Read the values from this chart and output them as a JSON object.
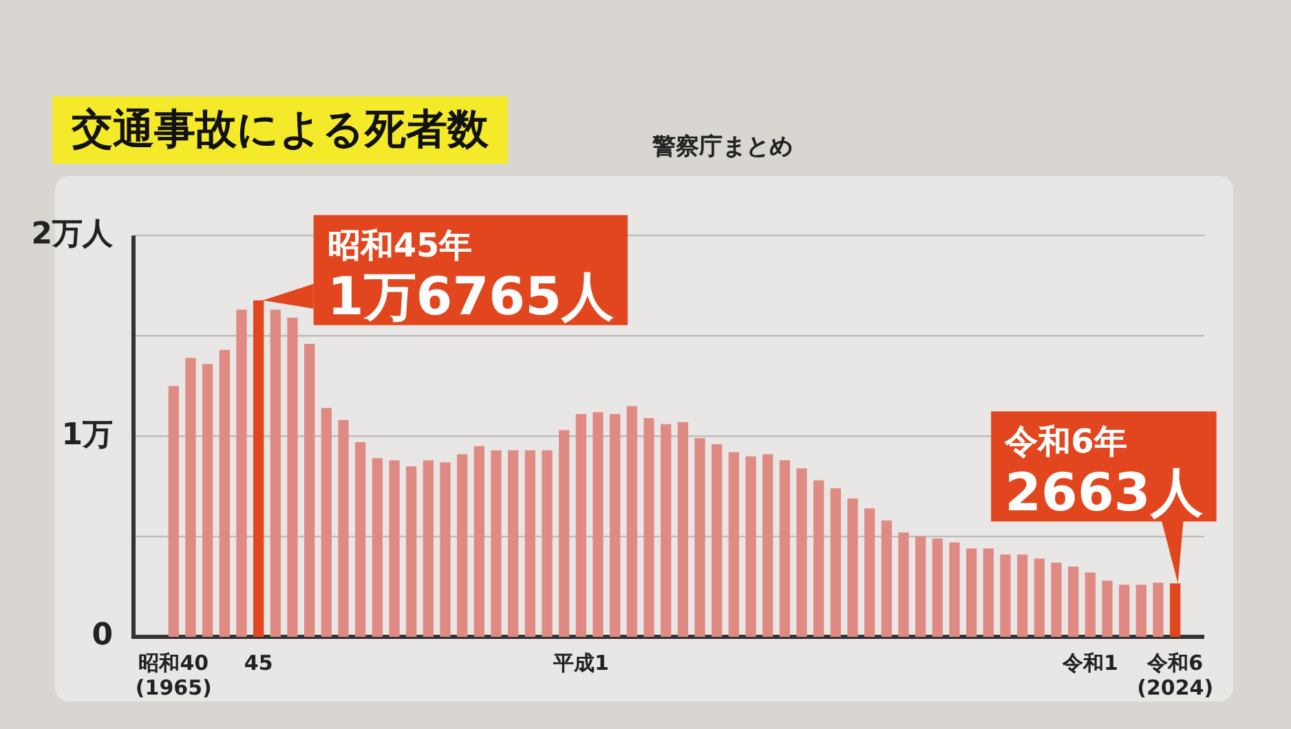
{
  "chart_data": {
    "type": "bar",
    "title": "交通事故による死者数",
    "subtitle": "警察庁まとめ",
    "categories": [
      "昭和40\n(1965)",
      null,
      null,
      null,
      null,
      "45",
      null,
      null,
      null,
      null,
      null,
      null,
      null,
      null,
      null,
      null,
      null,
      null,
      null,
      null,
      null,
      null,
      null,
      null,
      "平成1",
      null,
      null,
      null,
      null,
      null,
      null,
      null,
      null,
      null,
      null,
      null,
      null,
      null,
      null,
      null,
      null,
      null,
      null,
      null,
      null,
      null,
      null,
      null,
      null,
      null,
      null,
      null,
      null,
      null,
      "令和1",
      null,
      null,
      null,
      null,
      "令和6\n(2024)"
    ],
    "values": [
      1.25,
      1.39,
      1.36,
      1.43,
      1.63,
      1.6765,
      1.63,
      1.59,
      1.46,
      1.14,
      1.08,
      0.97,
      0.89,
      0.88,
      0.85,
      0.88,
      0.87,
      0.91,
      0.95,
      0.93,
      0.93,
      0.93,
      0.93,
      1.03,
      1.11,
      1.12,
      1.11,
      1.15,
      1.09,
      1.06,
      1.07,
      0.99,
      0.96,
      0.92,
      0.9,
      0.91,
      0.88,
      0.84,
      0.78,
      0.74,
      0.69,
      0.64,
      0.58,
      0.52,
      0.5,
      0.49,
      0.47,
      0.44,
      0.44,
      0.41,
      0.41,
      0.39,
      0.37,
      0.35,
      0.32,
      0.28,
      0.26,
      0.26,
      0.27,
      0.2663
    ],
    "colors": [
      "#e08a84",
      "#e08a84",
      "#e08a84",
      "#e08a84",
      "#e08a84",
      "#e2461e",
      "#e08a84",
      "#e08a84",
      "#e08a84",
      "#e08a84",
      "#e08a84",
      "#e08a84",
      "#e08a84",
      "#e08a84",
      "#e08a84",
      "#e08a84",
      "#e08a84",
      "#e08a84",
      "#e08a84",
      "#e08a84",
      "#e08a84",
      "#e08a84",
      "#e08a84",
      "#e08a84",
      "#e08a84",
      "#e08a84",
      "#e08a84",
      "#e08a84",
      "#e08a84",
      "#e08a84",
      "#e08a84",
      "#e08a84",
      "#e08a84",
      "#e08a84",
      "#e08a84",
      "#e08a84",
      "#e08a84",
      "#e08a84",
      "#e08a84",
      "#e08a84",
      "#e08a84",
      "#e08a84",
      "#e08a84",
      "#e08a84",
      "#e08a84",
      "#e08a84",
      "#e08a84",
      "#e08a84",
      "#e08a84",
      "#e08a84",
      "#e08a84",
      "#e08a84",
      "#e08a84",
      "#e08a84",
      "#e08a84",
      "#e08a84",
      "#e08a84",
      "#e08a84",
      "#e08a84",
      "#e2461e"
    ],
    "ylim": [
      0,
      2
    ],
    "yticks": [
      {
        "value": 0,
        "label": "0"
      },
      {
        "value": 0.5,
        "label": null
      },
      {
        "value": 1,
        "label": "1万"
      },
      {
        "value": 1.5,
        "label": null
      },
      {
        "value": 2,
        "label": "2万人"
      }
    ],
    "grid": "y",
    "legend": false,
    "annotations": [
      {
        "text": "昭和45年\n1万6765人",
        "x": "45",
        "y": 1.6765
      },
      {
        "text": "令和6年\n2663人",
        "x": "令和6\n(2024)",
        "y": 0.2663
      }
    ]
  }
}
